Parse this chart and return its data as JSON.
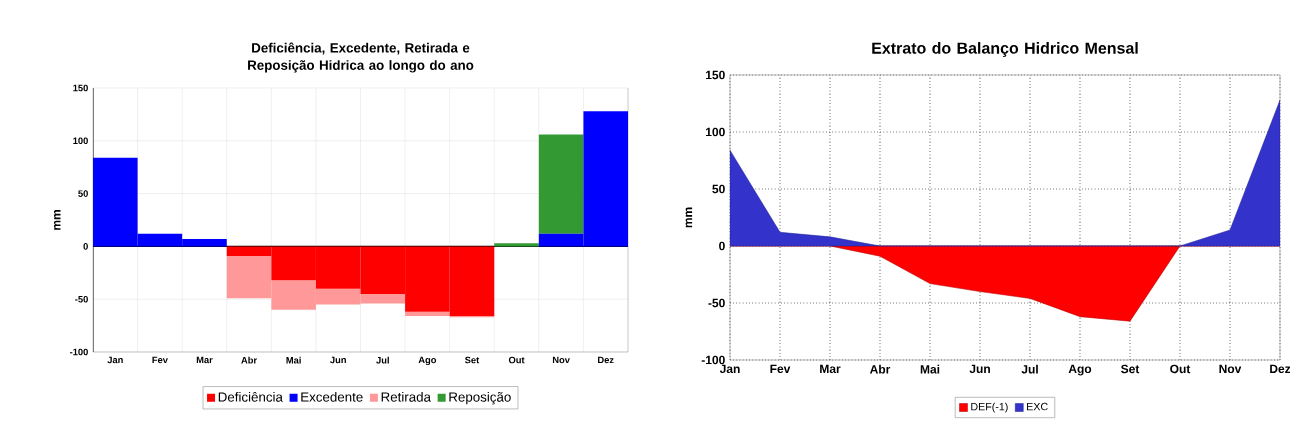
{
  "chart_data": [
    {
      "type": "bar",
      "title": "Deficiência, Excedente, Retirada e Reposição Hidrica ao longo do ano",
      "ylabel": "mm",
      "stacked": true,
      "grid": true,
      "legend": "bottom",
      "categories": [
        "Jan",
        "Fev",
        "Mar",
        "Abr",
        "Mai",
        "Jun",
        "Jul",
        "Ago",
        "Set",
        "Out",
        "Nov",
        "Dez"
      ],
      "ylim": [
        -100,
        150
      ],
      "yticks": [
        -100,
        -50,
        0,
        50,
        100,
        150
      ],
      "series": [
        {
          "name": "Deficiência",
          "color": "#ff0000",
          "values": [
            0,
            0,
            0,
            -9,
            -32,
            -40,
            -45,
            -62,
            -66,
            0,
            0,
            0
          ]
        },
        {
          "name": "Excedente",
          "color": "#0000ff",
          "values": [
            84,
            12,
            7,
            0,
            0,
            0,
            0,
            0,
            0,
            0,
            12,
            128
          ]
        },
        {
          "name": "Retirada",
          "color": "#ff9999",
          "values": [
            0,
            0,
            0,
            -40,
            -28,
            -15,
            -9,
            -4,
            -1,
            0,
            0,
            0
          ]
        },
        {
          "name": "Reposição",
          "color": "#339933",
          "values": [
            0,
            0,
            0,
            0,
            0,
            0,
            0,
            0,
            0,
            3,
            94,
            0
          ]
        }
      ]
    },
    {
      "type": "area",
      "title": "Extrato do Balanço Hidrico Mensal",
      "ylabel": "mm",
      "grid": true,
      "legend": "bottom",
      "categories": [
        "Jan",
        "Fev",
        "Mar",
        "Abr",
        "Mai",
        "Jun",
        "Jul",
        "Ago",
        "Set",
        "Out",
        "Nov",
        "Dez"
      ],
      "ylim": [
        -100,
        150
      ],
      "yticks": [
        -100,
        -50,
        0,
        50,
        100,
        150
      ],
      "series": [
        {
          "name": "DEF(-1)",
          "color": "#ff0000",
          "values": [
            0,
            0,
            0,
            -9,
            -33,
            -40,
            -46,
            -62,
            -66,
            0,
            0,
            0
          ]
        },
        {
          "name": "EXC",
          "color": "#3333cc",
          "values": [
            84,
            12,
            8,
            0,
            0,
            0,
            0,
            0,
            0,
            0,
            14,
            128
          ]
        }
      ]
    }
  ]
}
